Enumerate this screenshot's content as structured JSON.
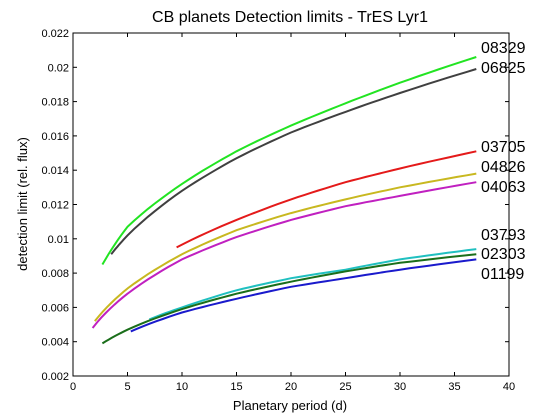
{
  "chart_data": {
    "type": "line",
    "title": "CB planets Detection limits - TrES Lyr1",
    "xlabel": "Planetary period (d)",
    "ylabel": "detection limit (rel. flux)",
    "xlim": [
      0,
      40
    ],
    "ylim": [
      0.002,
      0.022
    ],
    "xticks": [
      0,
      5,
      10,
      15,
      20,
      25,
      30,
      35,
      40
    ],
    "xtick_labels": [
      "0",
      "5",
      "10",
      "15",
      "20",
      "25",
      "30",
      "35",
      "40"
    ],
    "yticks": [
      0.002,
      0.004,
      0.006,
      0.008,
      0.01,
      0.012,
      0.014,
      0.016,
      0.018,
      0.02,
      0.022
    ],
    "ytick_labels": [
      "0.002",
      "0.004",
      "0.006",
      "0.008",
      "0.01",
      "0.012",
      "0.014",
      "0.016",
      "0.018",
      "0.02",
      "0.022"
    ],
    "grid": false,
    "legend": "none",
    "series": [
      {
        "name": "08329",
        "color": "#22e422",
        "x": [
          2.7,
          5,
          10,
          15,
          20,
          25,
          30,
          37
        ],
        "y": [
          0.0085,
          0.0107,
          0.0132,
          0.0151,
          0.0166,
          0.0179,
          0.0191,
          0.0206
        ]
      },
      {
        "name": "06825",
        "color": "#404040",
        "x": [
          3.5,
          5,
          10,
          15,
          20,
          25,
          30,
          37
        ],
        "y": [
          0.0091,
          0.0102,
          0.0128,
          0.0147,
          0.0162,
          0.0174,
          0.0185,
          0.0199
        ]
      },
      {
        "name": "03705",
        "color": "#e41a1a",
        "x": [
          9.5,
          15,
          20,
          25,
          30,
          37
        ],
        "y": [
          0.0095,
          0.0111,
          0.0123,
          0.0133,
          0.0141,
          0.0151
        ]
      },
      {
        "name": "04826",
        "color": "#c8b820",
        "x": [
          2,
          5,
          10,
          15,
          20,
          25,
          30,
          37
        ],
        "y": [
          0.0052,
          0.0071,
          0.0091,
          0.0105,
          0.0115,
          0.0123,
          0.013,
          0.0138
        ]
      },
      {
        "name": "04063",
        "color": "#c020c0",
        "x": [
          1.8,
          5,
          10,
          15,
          20,
          25,
          30,
          37
        ],
        "y": [
          0.0048,
          0.0068,
          0.0088,
          0.0101,
          0.0111,
          0.0119,
          0.0125,
          0.0133
        ]
      },
      {
        "name": "03793",
        "color": "#20c0c0",
        "x": [
          7,
          10,
          15,
          20,
          25,
          30,
          37
        ],
        "y": [
          0.0053,
          0.006,
          0.007,
          0.0077,
          0.0082,
          0.0088,
          0.0094
        ]
      },
      {
        "name": "02303",
        "color": "#1a6e1a",
        "x": [
          2.7,
          5,
          10,
          15,
          20,
          25,
          30,
          37
        ],
        "y": [
          0.0039,
          0.0047,
          0.0059,
          0.0068,
          0.0075,
          0.0081,
          0.0086,
          0.0091
        ]
      },
      {
        "name": "01199",
        "color": "#1a1acc",
        "x": [
          5.3,
          10,
          15,
          20,
          25,
          30,
          37
        ],
        "y": [
          0.0046,
          0.0057,
          0.0065,
          0.0072,
          0.0077,
          0.0082,
          0.0088
        ]
      }
    ]
  }
}
